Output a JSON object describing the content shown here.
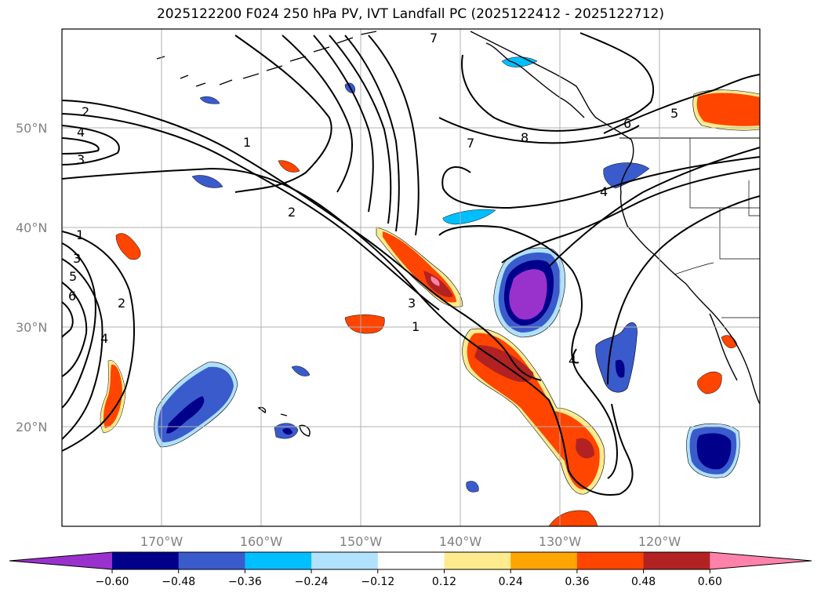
{
  "title": "2025122200 F024 250 hPa PV, IVT Landfall PC (2025122412 - 2025122712)",
  "map": {
    "lon_range": [
      -180,
      -110
    ],
    "lat_range": [
      10,
      60
    ],
    "lat_labels": [
      "50°N",
      "40°N",
      "30°N",
      "20°N"
    ],
    "lon_labels": [
      "170°W",
      "160°W",
      "150°W",
      "140°W",
      "130°W",
      "120°W"
    ],
    "contour_labels": [
      "7",
      "2",
      "4",
      "3",
      "1",
      "2",
      "7",
      "8",
      "6",
      "5",
      "4",
      "1",
      "3",
      "5",
      "6",
      "2",
      "4",
      "3",
      "1",
      "4"
    ]
  },
  "colorbar": {
    "ticks": [
      "−0.60",
      "−0.48",
      "−0.36",
      "−0.24",
      "−0.12",
      "0.12",
      "0.24",
      "0.36",
      "0.48",
      "0.60"
    ],
    "colors": [
      "#9932cc",
      "#00008b",
      "#3a5bcc",
      "#00bfff",
      "#b0e2ff",
      "#ffffff",
      "#fdeb8e",
      "#ffa500",
      "#ff4500",
      "#b22222",
      "#ff82ab"
    ]
  }
}
